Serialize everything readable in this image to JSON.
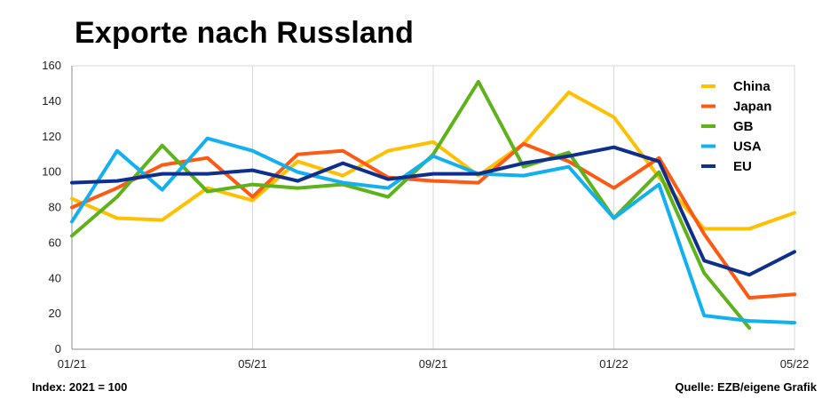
{
  "title": "Exporte nach Russland",
  "footer": {
    "left": "Index: 2021 = 100",
    "right": "Quelle: EZB/eigene Grafik"
  },
  "chart_data": {
    "type": "line",
    "x_ticks": [
      "01/21",
      "05/21",
      "09/21",
      "01/22",
      "05/22"
    ],
    "x": [
      "01/21",
      "02/21",
      "03/21",
      "04/21",
      "05/21",
      "06/21",
      "07/21",
      "08/21",
      "09/21",
      "10/21",
      "11/21",
      "12/21",
      "01/22",
      "02/22",
      "03/22",
      "04/22",
      "05/22"
    ],
    "y_ticks": [
      0,
      20,
      40,
      60,
      80,
      100,
      120,
      140,
      160
    ],
    "ylim": [
      0,
      160
    ],
    "grid": "vertical",
    "legend_position": "top-right",
    "series": [
      {
        "name": "China",
        "color": "#FFC000",
        "values": [
          85,
          74,
          73,
          91,
          84,
          106,
          98,
          112,
          117,
          98,
          116,
          145,
          131,
          97,
          68,
          68,
          77
        ]
      },
      {
        "name": "Japan",
        "color": "#FF5A14",
        "values": [
          80,
          91,
          104,
          108,
          86,
          110,
          112,
          97,
          95,
          94,
          116,
          106,
          91,
          108,
          65,
          29,
          31
        ]
      },
      {
        "name": "GB",
        "color": "#5EB31B",
        "values": [
          64,
          86,
          115,
          89,
          93,
          91,
          93,
          86,
          110,
          151,
          103,
          111,
          74,
          100,
          43,
          12,
          null
        ]
      },
      {
        "name": "USA",
        "color": "#12B0EE",
        "values": [
          72,
          112,
          90,
          119,
          112,
          100,
          94,
          91,
          109,
          99,
          98,
          103,
          74,
          93,
          19,
          16,
          15
        ]
      },
      {
        "name": "EU",
        "color": "#0F2F8C",
        "values": [
          94,
          95,
          99,
          99,
          101,
          95,
          105,
          96,
          99,
          99,
          105,
          109,
          114,
          106,
          50,
          42,
          55
        ]
      }
    ]
  }
}
